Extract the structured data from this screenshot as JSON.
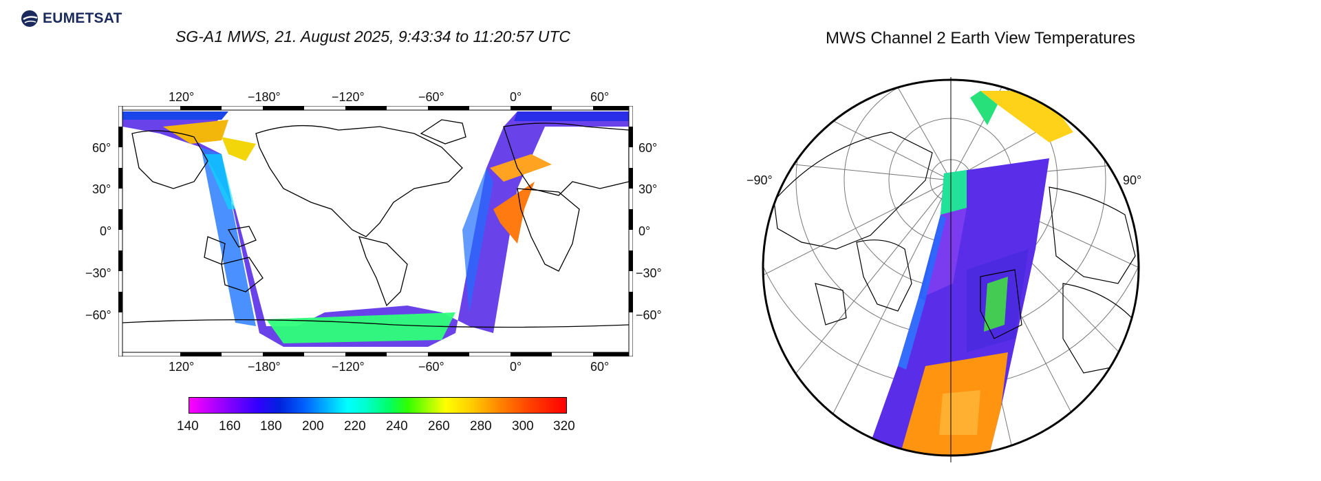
{
  "branding": {
    "logo_text": "EUMETSAT"
  },
  "left_panel": {
    "title": "SG-A1 MWS, 21. August 2025, 9:43:34 to 11:20:57 UTC",
    "lon_ticks_top": [
      "120°",
      "−180°",
      "−120°",
      "−60°",
      "0°",
      "60°"
    ],
    "lon_ticks_bottom": [
      "120°",
      "−180°",
      "−120°",
      "−60°",
      "0°",
      "60°"
    ],
    "lat_ticks_left": [
      "60°",
      "30°",
      "0°",
      "−30°",
      "−60°"
    ],
    "lat_ticks_right": [
      "60°",
      "30°",
      "0°",
      "−30°",
      "−60°"
    ]
  },
  "colorbar": {
    "min": 140,
    "max": 320,
    "labels": [
      "140",
      "160",
      "180",
      "200",
      "220",
      "240",
      "260",
      "280",
      "300",
      "320"
    ],
    "colormap": [
      "#ff00ff",
      "#3300ff",
      "#0066ff",
      "#00ffff",
      "#00ff66",
      "#99ff00",
      "#ffff00",
      "#ff8800",
      "#ff0000"
    ]
  },
  "right_panel": {
    "title": "MWS Channel 2 Earth View Temperatures",
    "meridian_labels": [
      "−90°",
      "90°"
    ]
  },
  "colors": {
    "swath_cold": "#5a2ee8",
    "swath_mid": "#00ff66",
    "swath_warm": "#ff8800",
    "land_outline": "#000000"
  }
}
